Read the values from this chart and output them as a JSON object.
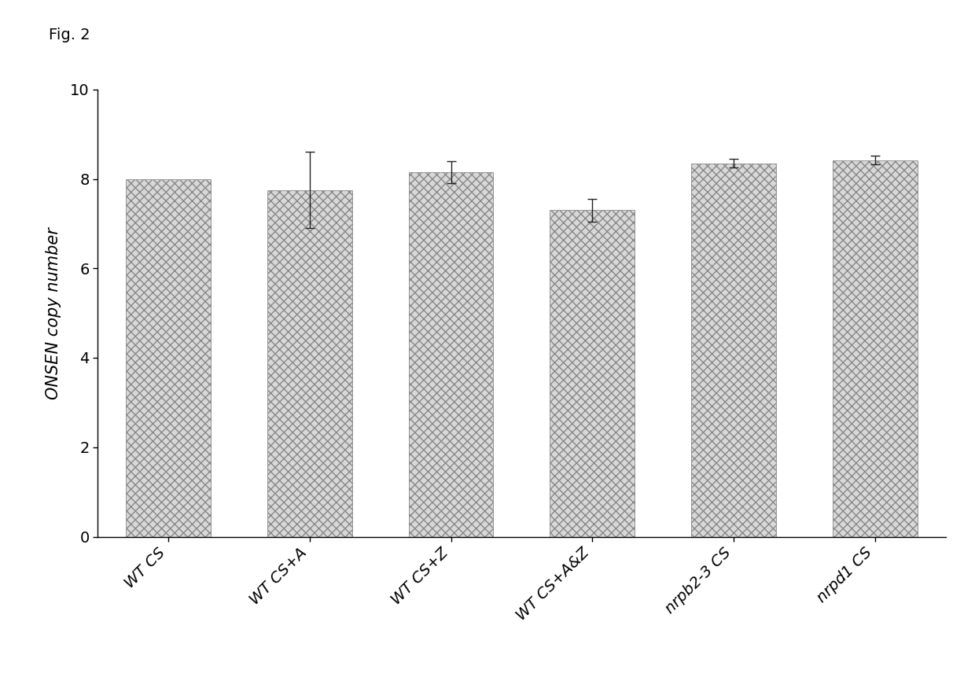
{
  "categories": [
    "WT CS",
    "WT CS+A",
    "WT CS+Z",
    "WT CS+A&Z",
    "nrpb2-3 CS",
    "nrpd1 CS"
  ],
  "values": [
    8.0,
    7.75,
    8.15,
    7.3,
    8.35,
    8.42
  ],
  "errors": [
    0.0,
    0.85,
    0.25,
    0.25,
    0.1,
    0.1
  ],
  "bar_color": "#d8d8d8",
  "bar_edgecolor": "#888888",
  "bar_linewidth": 0.6,
  "error_color": "#222222",
  "error_linewidth": 1.0,
  "error_capsize": 4,
  "ylabel": "ONSEN copy number",
  "ylim": [
    0,
    10
  ],
  "yticks": [
    0,
    2,
    4,
    6,
    8,
    10
  ],
  "fig_label": "Fig. 2",
  "background_color": "#ffffff",
  "bar_width": 0.6,
  "axis_fontsize": 15,
  "tick_fontsize": 14,
  "hatch_density": 8
}
